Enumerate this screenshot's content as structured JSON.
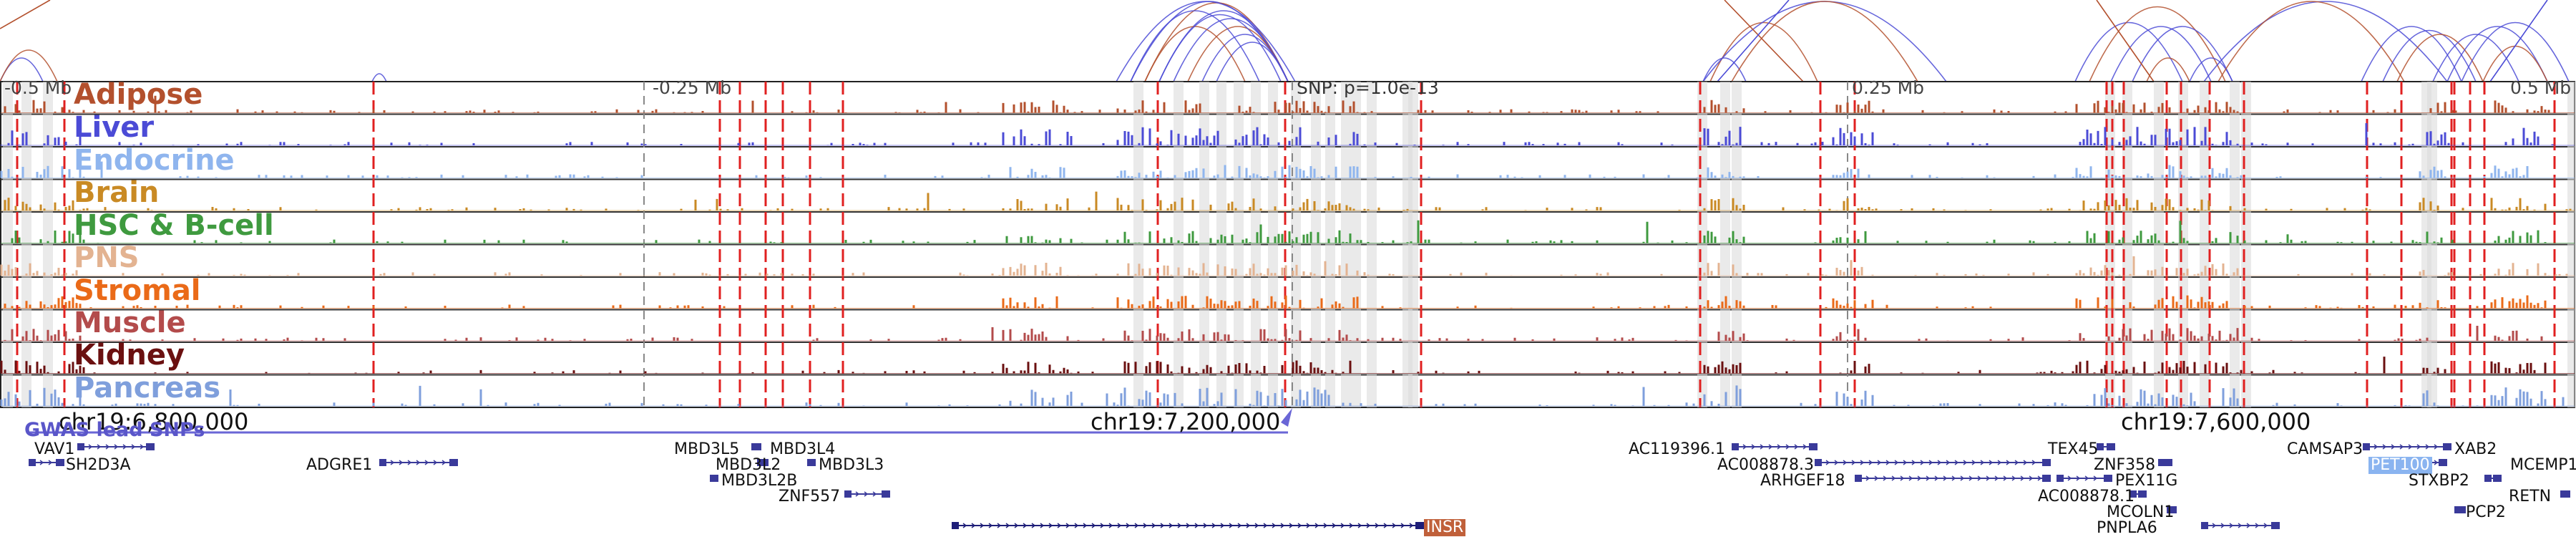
{
  "tracks": [
    {
      "name": "Adipose",
      "color": "#b3502d"
    },
    {
      "name": "Liver",
      "color": "#4b4bd6"
    },
    {
      "name": "Endocrine",
      "color": "#8fb5ee"
    },
    {
      "name": "Brain",
      "color": "#c98a24"
    },
    {
      "name": "HSC & B-cell",
      "color": "#3f9a3f"
    },
    {
      "name": "PNS",
      "color": "#e3b391"
    },
    {
      "name": "Stromal",
      "color": "#ea6a18"
    },
    {
      "name": "Muscle",
      "color": "#b34b4b"
    },
    {
      "name": "Kidney",
      "color": "#6b1010"
    },
    {
      "name": "Pancreas",
      "color": "#7f9fdc"
    }
  ],
  "scale": {
    "left": "-0.5 Mb",
    "left_mid": "-0.25 Mb",
    "snp": "SNP: p=1.0e-13",
    "right_mid": "0.25 Mb",
    "right": "0.5 Mb"
  },
  "coordinates": {
    "c1": "chr19:6,800,000",
    "c2": "chr19:7,200,000",
    "c3": "chr19:7,600,000"
  },
  "gwas_label": "GWAS lead SNPs",
  "genes": {
    "vav1": "VAV1",
    "sh2d3a": "SH2D3A",
    "adgre1": "ADGRE1",
    "mbd3l5": "MBD3L5",
    "mbd3l4": "MBD3L4",
    "mbd3l2": "MBD3L2",
    "mbd3l3": "MBD3L3",
    "mbd3l2b": "MBD3L2B",
    "znf557": "ZNF557",
    "insr": "INSR",
    "ac119396": "AC119396.1",
    "ac008878_3": "AC008878.3",
    "arhgef18": "ARHGEF18",
    "tex45": "TEX45",
    "znf358": "ZNF358",
    "pex11g": "PEX11G",
    "ac008878_1": "AC008878.1",
    "mcoln1": "MCOLN1",
    "pnpla6": "PNPLA6",
    "camsap3": "CAMSAP3",
    "xab2": "XAB2",
    "pet100": "PET100",
    "mcemp1": "MCEMP1",
    "stxbp2": "STXBP2",
    "retn": "RETN",
    "pcp2": "PCP2"
  }
}
